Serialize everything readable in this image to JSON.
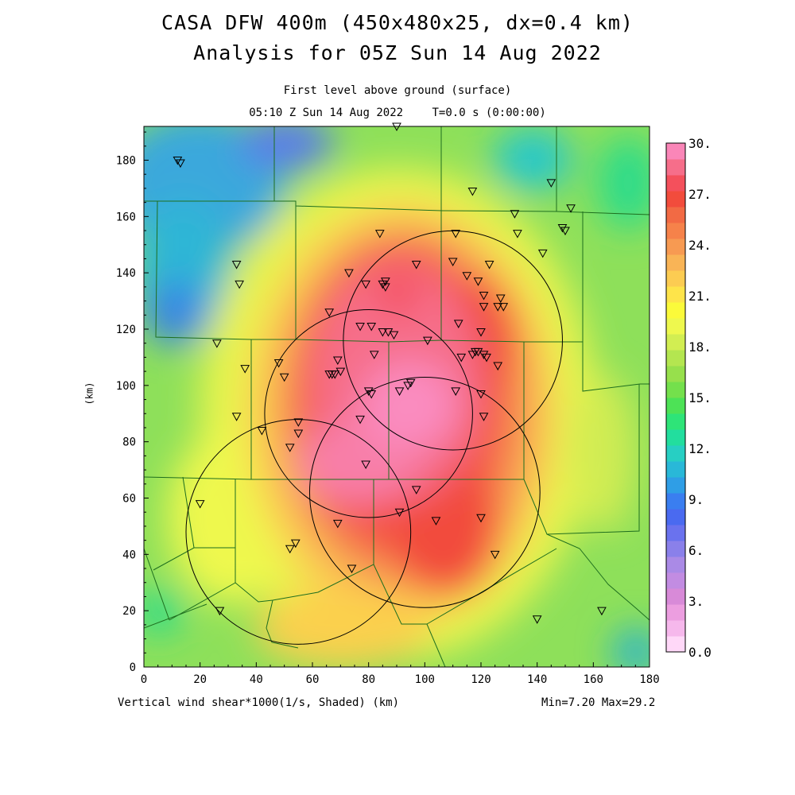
{
  "title": {
    "line1": "CASA DFW 400m (450x480x25, dx=0.4 km)",
    "line2": "Analysis for 05Z Sun 14 Aug 2022"
  },
  "subtitle": {
    "level": "First level above ground (surface)",
    "time": "05:10 Z Sun 14 Aug 2022",
    "elapsed": "T=0.0 s (0:00:00)"
  },
  "axes": {
    "x_ticks": [
      "0",
      "20",
      "40",
      "60",
      "80",
      "100",
      "120",
      "140",
      "160",
      "180"
    ],
    "y_ticks": [
      "0",
      "20",
      "40",
      "60",
      "80",
      "100",
      "120",
      "140",
      "160",
      "180"
    ],
    "y_label": "(km)",
    "x_unit_label": "(km)"
  },
  "footer": {
    "field": "Vertical wind shear*1000(1/s, Shaded)",
    "unit": "(km)",
    "minmax": "Min=7.20 Max=29.2"
  },
  "colorbar": {
    "labels": [
      "30.",
      "27.",
      "24.",
      "21.",
      "18.",
      "15.",
      "12.",
      "9.",
      "6.",
      "3.",
      "0.0"
    ],
    "colors": [
      "#ffd8f8",
      "#f6b8ec",
      "#ec9ee0",
      "#d88ad8",
      "#c28ce2",
      "#aa8ae6",
      "#8a80ea",
      "#6a72ee",
      "#4a6af0",
      "#3a7ef0",
      "#2f9ee6",
      "#29b8d8",
      "#27cfc3",
      "#22de9e",
      "#2ee478",
      "#4de256",
      "#74e04c",
      "#97e04c",
      "#b4e650",
      "#d2ee52",
      "#eef84e",
      "#fbfa3a",
      "#fee44a",
      "#fccc52",
      "#f9b456",
      "#f79a52",
      "#f6824a",
      "#f26a44",
      "#f24c3c",
      "#f4505c",
      "#f66e8a",
      "#fa86b8"
    ]
  },
  "radar_sites": [
    {
      "x": 55,
      "y": 48,
      "r": 40
    },
    {
      "x": 80,
      "y": 90,
      "r": 37
    },
    {
      "x": 100,
      "y": 62,
      "r": 41
    },
    {
      "x": 110,
      "y": 116,
      "r": 39
    }
  ],
  "stations": [
    [
      12,
      180
    ],
    [
      13,
      179
    ],
    [
      90,
      192
    ],
    [
      117,
      169
    ],
    [
      145,
      172
    ],
    [
      152,
      163
    ],
    [
      132,
      161
    ],
    [
      149,
      156
    ],
    [
      150,
      155
    ],
    [
      133,
      154
    ],
    [
      111,
      154
    ],
    [
      84,
      154
    ],
    [
      142,
      147
    ],
    [
      33,
      143
    ],
    [
      73,
      140
    ],
    [
      97,
      143
    ],
    [
      110,
      144
    ],
    [
      115,
      139
    ],
    [
      123,
      143
    ],
    [
      119,
      137
    ],
    [
      34,
      136
    ],
    [
      79,
      136
    ],
    [
      85,
      136
    ],
    [
      86,
      137
    ],
    [
      86,
      135
    ],
    [
      121,
      132
    ],
    [
      127,
      131
    ],
    [
      126,
      128
    ],
    [
      128,
      128
    ],
    [
      121,
      128
    ],
    [
      66,
      126
    ],
    [
      112,
      122
    ],
    [
      77,
      121
    ],
    [
      81,
      121
    ],
    [
      85,
      119
    ],
    [
      87,
      119
    ],
    [
      89,
      118
    ],
    [
      120,
      119
    ],
    [
      26,
      115
    ],
    [
      101,
      116
    ],
    [
      69,
      109
    ],
    [
      82,
      111
    ],
    [
      113,
      110
    ],
    [
      117,
      111
    ],
    [
      118,
      112
    ],
    [
      119,
      112
    ],
    [
      121,
      111
    ],
    [
      122,
      110
    ],
    [
      126,
      107
    ],
    [
      36,
      106
    ],
    [
      48,
      108
    ],
    [
      70,
      105
    ],
    [
      68,
      104
    ],
    [
      67,
      104
    ],
    [
      66,
      104
    ],
    [
      50,
      103
    ],
    [
      95,
      101
    ],
    [
      94,
      100
    ],
    [
      91,
      98
    ],
    [
      80,
      98
    ],
    [
      81,
      97
    ],
    [
      111,
      98
    ],
    [
      120,
      97
    ],
    [
      33,
      89
    ],
    [
      77,
      88
    ],
    [
      121,
      89
    ],
    [
      55,
      87
    ],
    [
      42,
      84
    ],
    [
      55,
      83
    ],
    [
      52,
      78
    ],
    [
      79,
      72
    ],
    [
      97,
      63
    ],
    [
      20,
      58
    ],
    [
      91,
      55
    ],
    [
      104,
      52
    ],
    [
      120,
      53
    ],
    [
      69,
      51
    ],
    [
      54,
      44
    ],
    [
      52,
      42
    ],
    [
      125,
      40
    ],
    [
      74,
      35
    ],
    [
      27,
      20
    ],
    [
      140,
      17
    ],
    [
      163,
      20
    ]
  ],
  "chart_data": {
    "type": "heatmap",
    "title": "CASA DFW 400m (450x480x25, dx=0.4 km)",
    "field": "Vertical wind shear*1000(1/s, Shaded)",
    "xlabel": "(km)",
    "ylabel": "(km)",
    "xlim": [
      0,
      180
    ],
    "ylim": [
      0,
      192
    ],
    "min": 7.2,
    "max": 29.2,
    "colorbar_range": [
      0.0,
      30.0
    ]
  }
}
